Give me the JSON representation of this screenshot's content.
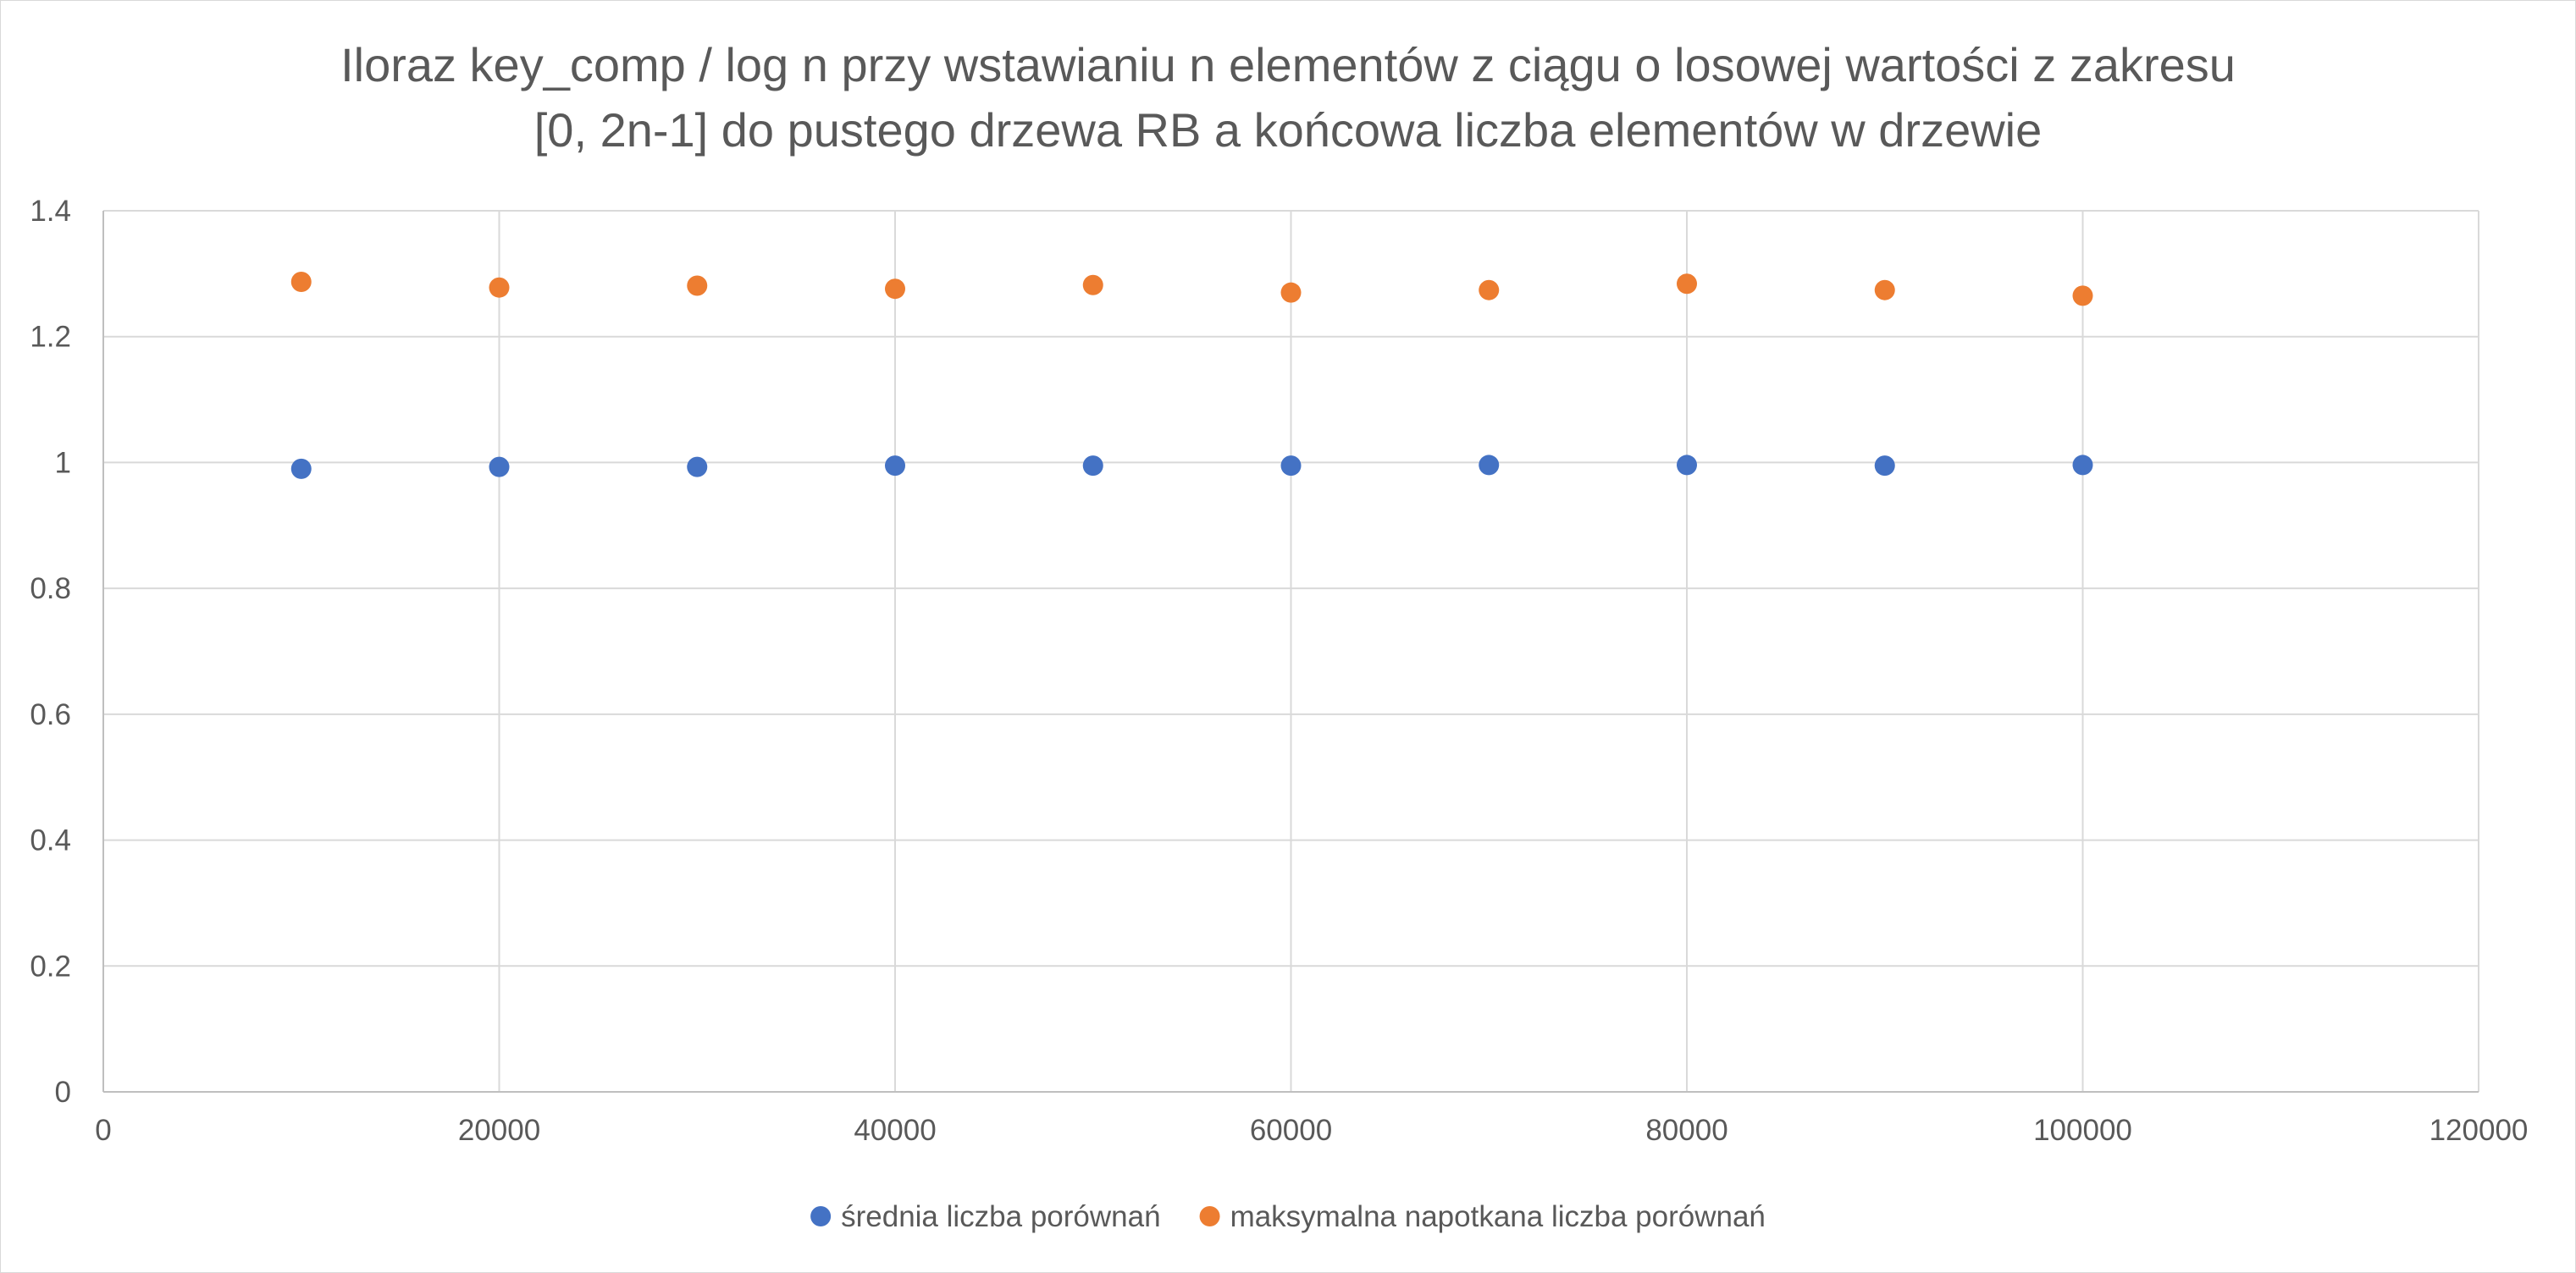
{
  "chart_data": {
    "type": "scatter",
    "title_lines": [
      "Iloraz key_comp / log n przy wstawianiu n elementów z ciągu o losowej wartości z zakresu",
      "[0, 2n-1] do pustego drzewa RB a końcowa liczba elementów w drzewie"
    ],
    "xlabel": "",
    "ylabel": "",
    "xlim": [
      0,
      120000
    ],
    "ylim": [
      0,
      1.4
    ],
    "x_ticks": [
      0,
      20000,
      40000,
      60000,
      80000,
      100000,
      120000
    ],
    "x_tick_labels": [
      "0",
      "20000",
      "40000",
      "60000",
      "80000",
      "100000",
      "120000"
    ],
    "y_ticks": [
      0,
      0.2,
      0.4,
      0.6,
      0.8,
      1,
      1.2,
      1.4
    ],
    "y_tick_labels": [
      "0",
      "0.2",
      "0.4",
      "0.6",
      "0.8",
      "1",
      "1.2",
      "1.4"
    ],
    "grid": true,
    "legend_position": "bottom",
    "x": [
      10000,
      20000,
      30000,
      40000,
      50000,
      60000,
      70000,
      80000,
      90000,
      100000
    ],
    "series": [
      {
        "name": "średnia liczba porównań",
        "color": "#4472C4",
        "values": [
          0.99,
          0.993,
          0.993,
          0.995,
          0.995,
          0.995,
          0.996,
          0.996,
          0.995,
          0.996
        ]
      },
      {
        "name": "maksymalna napotkana liczba porównań",
        "color": "#ED7D31",
        "values": [
          1.287,
          1.278,
          1.281,
          1.276,
          1.282,
          1.27,
          1.274,
          1.284,
          1.274,
          1.265
        ]
      }
    ]
  }
}
